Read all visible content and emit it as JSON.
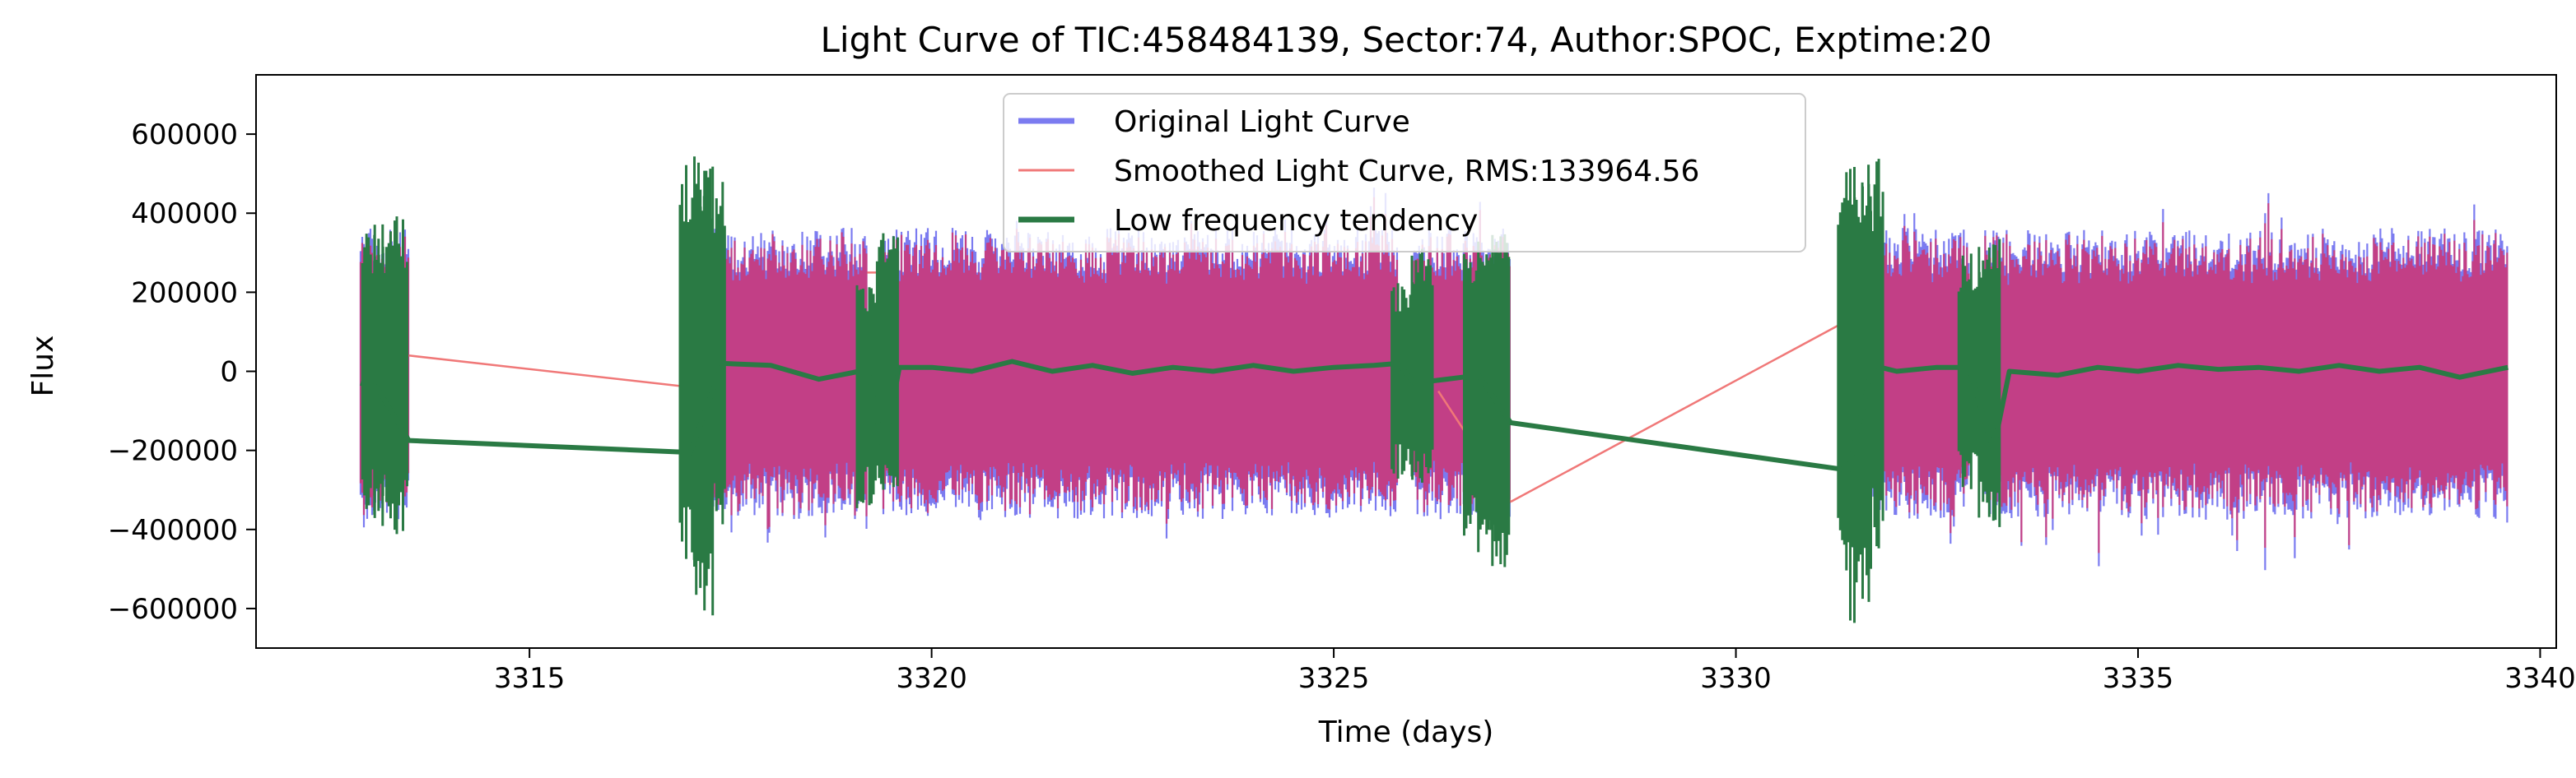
{
  "chart_data": {
    "type": "line",
    "title": "Light Curve of TIC:458484139, Sector:74, Author:SPOC, Exptime:20",
    "xlabel": "Time (days)",
    "ylabel": "Flux",
    "xlim": [
      3311.6,
      3340.2
    ],
    "ylim": [
      -700000,
      750000
    ],
    "x_ticks": [
      3315,
      3320,
      3325,
      3330,
      3335,
      3340
    ],
    "x_tick_labels": [
      "3315",
      "3320",
      "3325",
      "3330",
      "3335",
      "3340"
    ],
    "y_ticks": [
      -600000,
      -400000,
      -200000,
      0,
      200000,
      400000,
      600000
    ],
    "y_tick_labels": [
      "−600000",
      "−400000",
      "−200000",
      "0",
      "200000",
      "400000",
      "600000"
    ],
    "grid": false,
    "legend_position": "top-center",
    "segments": [
      {
        "start": 3312.9,
        "end": 3313.5
      },
      {
        "start": 3317.0,
        "end": 3319.2
      },
      {
        "start": 3319.4,
        "end": 3325.8
      },
      {
        "start": 3326.0,
        "end": 3327.2
      },
      {
        "start": 3331.4,
        "end": 3332.9
      },
      {
        "start": 3333.1,
        "end": 3339.6
      }
    ],
    "noise_envelope": {
      "upper": 330000,
      "lower": -340000
    },
    "series": [
      {
        "name": "Original Light Curve",
        "color": "#7b7bf0",
        "style": "noise-band",
        "gaps": [
          [
            3313.5,
            3317.0
          ],
          [
            3327.2,
            3331.4
          ]
        ]
      },
      {
        "name": "Smoothed Light Curve, RMS:133964.56",
        "color": "#c63c7f",
        "style": "noise-band",
        "gap_lines": [
          {
            "x": [
              3313.5,
              3317.0
            ],
            "y": [
              40000,
              -40000
            ]
          },
          {
            "x": [
              3319.2,
              3319.4
            ],
            "y": [
              250000,
              250000
            ]
          },
          {
            "x": [
              3326.3,
              3327.2
            ],
            "y": [
              -50000,
              -330000
            ]
          },
          {
            "x": [
              3327.2,
              3331.4
            ],
            "y": [
              -330000,
              130000
            ]
          },
          {
            "x": [
              3332.9,
              3333.2
            ],
            "y": [
              -150000,
              -200000
            ]
          }
        ]
      },
      {
        "name": "Low frequency tendency",
        "color": "#2a7a44",
        "style": "trend",
        "points": [
          [
            3312.9,
            -30000
          ],
          [
            3313.1,
            -40000
          ],
          [
            3313.5,
            -175000
          ],
          [
            3317.0,
            -205000
          ],
          [
            3317.4,
            20000
          ],
          [
            3318.0,
            15000
          ],
          [
            3318.6,
            -20000
          ],
          [
            3319.1,
            0
          ],
          [
            3319.2,
            10000
          ],
          [
            3319.4,
            -200000
          ],
          [
            3319.6,
            10000
          ],
          [
            3320.0,
            10000
          ],
          [
            3320.5,
            0
          ],
          [
            3321.0,
            25000
          ],
          [
            3321.5,
            0
          ],
          [
            3322.0,
            15000
          ],
          [
            3322.5,
            -5000
          ],
          [
            3323.0,
            10000
          ],
          [
            3323.5,
            0
          ],
          [
            3324.0,
            15000
          ],
          [
            3324.5,
            0
          ],
          [
            3325.0,
            10000
          ],
          [
            3325.5,
            15000
          ],
          [
            3325.8,
            20000
          ],
          [
            3326.0,
            -30000
          ],
          [
            3326.4,
            -20000
          ],
          [
            3326.8,
            -10000
          ],
          [
            3327.2,
            -130000
          ],
          [
            3331.4,
            -250000
          ],
          [
            3331.7,
            15000
          ],
          [
            3332.0,
            0
          ],
          [
            3332.5,
            10000
          ],
          [
            3332.9,
            10000
          ],
          [
            3333.2,
            -200000
          ],
          [
            3333.4,
            0
          ],
          [
            3334.0,
            -10000
          ],
          [
            3334.5,
            10000
          ],
          [
            3335.0,
            0
          ],
          [
            3335.5,
            15000
          ],
          [
            3336.0,
            5000
          ],
          [
            3336.5,
            10000
          ],
          [
            3337.0,
            0
          ],
          [
            3337.5,
            15000
          ],
          [
            3338.0,
            0
          ],
          [
            3338.5,
            10000
          ],
          [
            3339.0,
            -15000
          ],
          [
            3339.6,
            10000
          ]
        ],
        "spikes": [
          {
            "x": 3313.05,
            "y": [
              -380000,
              380000
            ]
          },
          {
            "x": 3313.2,
            "y": [
              -400000,
              380000
            ]
          },
          {
            "x": 3313.35,
            "y": [
              -420000,
              400000
            ]
          },
          {
            "x": 3317.0,
            "y": [
              -500000,
              550000
            ]
          },
          {
            "x": 3317.15,
            "y": [
              -620000,
              520000
            ]
          },
          {
            "x": 3317.3,
            "y": [
              -420000,
              520000
            ]
          },
          {
            "x": 3319.2,
            "y": [
              -350000,
              220000
            ]
          },
          {
            "x": 3319.45,
            "y": [
              -300000,
              350000
            ]
          },
          {
            "x": 3325.85,
            "y": [
              -280000,
              230000
            ]
          },
          {
            "x": 3326.1,
            "y": [
              -300000,
              330000
            ]
          },
          {
            "x": 3326.75,
            "y": [
              -420000,
              300000
            ]
          },
          {
            "x": 3326.9,
            "y": [
              -460000,
              330000
            ]
          },
          {
            "x": 3327.05,
            "y": [
              -500000,
              350000
            ]
          },
          {
            "x": 3331.4,
            "y": [
              -520000,
              520000
            ]
          },
          {
            "x": 3331.55,
            "y": [
              -640000,
              520000
            ]
          },
          {
            "x": 3331.7,
            "y": [
              -450000,
              540000
            ]
          },
          {
            "x": 3332.9,
            "y": [
              -300000,
              300000
            ]
          },
          {
            "x": 3333.15,
            "y": [
              -400000,
              340000
            ]
          }
        ]
      }
    ]
  }
}
